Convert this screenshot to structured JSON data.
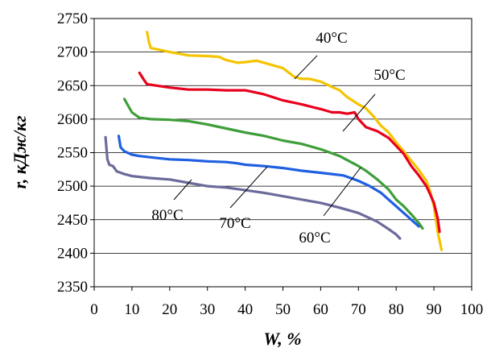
{
  "chart_data": {
    "type": "line",
    "xlabel": "W, %",
    "ylabel": "r, кДж/кг",
    "xlim": [
      0,
      100
    ],
    "ylim": [
      2350,
      2750
    ],
    "x_ticks": [
      "0",
      "10",
      "20",
      "30",
      "40",
      "50",
      "60",
      "70",
      "80",
      "90",
      "100"
    ],
    "y_ticks": [
      "2350",
      "2400",
      "2450",
      "2500",
      "2550",
      "2600",
      "2650",
      "2700",
      "2750"
    ],
    "grid": "horizontal",
    "legend": "none",
    "series": [
      {
        "name": "40°C",
        "color": "#f5c400",
        "points": [
          [
            14,
            2730
          ],
          [
            14.5,
            2715
          ],
          [
            15,
            2706
          ],
          [
            20,
            2700
          ],
          [
            25,
            2695
          ],
          [
            30,
            2694
          ],
          [
            33,
            2693
          ],
          [
            35,
            2688
          ],
          [
            38,
            2684
          ],
          [
            40,
            2685
          ],
          [
            43,
            2687
          ],
          [
            45,
            2684
          ],
          [
            50,
            2676
          ],
          [
            53,
            2663
          ],
          [
            55,
            2660
          ],
          [
            57,
            2660
          ],
          [
            60,
            2656
          ],
          [
            63,
            2648
          ],
          [
            65,
            2643
          ],
          [
            67,
            2633
          ],
          [
            70,
            2622
          ],
          [
            72,
            2616
          ],
          [
            74,
            2604
          ],
          [
            76,
            2590
          ],
          [
            78,
            2580
          ],
          [
            80,
            2565
          ],
          [
            82,
            2552
          ],
          [
            84,
            2538
          ],
          [
            86,
            2524
          ],
          [
            88,
            2508
          ],
          [
            89,
            2492
          ],
          [
            90,
            2470
          ],
          [
            91,
            2432
          ],
          [
            92,
            2405
          ]
        ]
      },
      {
        "name": "50°C",
        "color": "#e8001c",
        "points": [
          [
            12,
            2669
          ],
          [
            13,
            2660
          ],
          [
            14,
            2652
          ],
          [
            20,
            2647
          ],
          [
            25,
            2644
          ],
          [
            30,
            2644
          ],
          [
            35,
            2643
          ],
          [
            38,
            2643
          ],
          [
            40,
            2643
          ],
          [
            45,
            2637
          ],
          [
            50,
            2628
          ],
          [
            55,
            2622
          ],
          [
            60,
            2615
          ],
          [
            63,
            2610
          ],
          [
            65,
            2610
          ],
          [
            67,
            2608
          ],
          [
            69,
            2610
          ],
          [
            70,
            2600
          ],
          [
            72,
            2588
          ],
          [
            75,
            2582
          ],
          [
            78,
            2572
          ],
          [
            80,
            2560
          ],
          [
            82,
            2548
          ],
          [
            84,
            2530
          ],
          [
            86,
            2516
          ],
          [
            88,
            2500
          ],
          [
            89,
            2488
          ],
          [
            90,
            2475
          ],
          [
            91,
            2452
          ],
          [
            91.5,
            2432
          ]
        ]
      },
      {
        "name": "60°C",
        "color": "#3f9e3a",
        "points": [
          [
            8,
            2630
          ],
          [
            9,
            2620
          ],
          [
            10,
            2610
          ],
          [
            12,
            2602
          ],
          [
            15,
            2600
          ],
          [
            20,
            2599
          ],
          [
            25,
            2597
          ],
          [
            30,
            2592
          ],
          [
            35,
            2586
          ],
          [
            40,
            2580
          ],
          [
            45,
            2575
          ],
          [
            50,
            2568
          ],
          [
            55,
            2563
          ],
          [
            60,
            2555
          ],
          [
            65,
            2545
          ],
          [
            70,
            2530
          ],
          [
            72,
            2523
          ],
          [
            75,
            2510
          ],
          [
            78,
            2495
          ],
          [
            80,
            2480
          ],
          [
            82,
            2470
          ],
          [
            84,
            2458
          ],
          [
            86,
            2445
          ],
          [
            87,
            2437
          ]
        ]
      },
      {
        "name": "70°C",
        "color": "#1f5fe0",
        "points": [
          [
            6.5,
            2575
          ],
          [
            7,
            2558
          ],
          [
            8,
            2552
          ],
          [
            10,
            2547
          ],
          [
            12,
            2545
          ],
          [
            15,
            2543
          ],
          [
            20,
            2540
          ],
          [
            25,
            2539
          ],
          [
            30,
            2537
          ],
          [
            35,
            2536
          ],
          [
            38,
            2534
          ],
          [
            40,
            2532
          ],
          [
            45,
            2530
          ],
          [
            50,
            2527
          ],
          [
            55,
            2523
          ],
          [
            60,
            2520
          ],
          [
            63,
            2518
          ],
          [
            66,
            2516
          ],
          [
            70,
            2508
          ],
          [
            73,
            2500
          ],
          [
            76,
            2490
          ],
          [
            78,
            2480
          ],
          [
            80,
            2470
          ],
          [
            82,
            2460
          ],
          [
            84,
            2450
          ],
          [
            86,
            2440
          ]
        ]
      },
      {
        "name": "80°C",
        "color": "#6b6a9a",
        "points": [
          [
            3,
            2573
          ],
          [
            3.5,
            2540
          ],
          [
            4,
            2532
          ],
          [
            5,
            2530
          ],
          [
            6,
            2522
          ],
          [
            8,
            2518
          ],
          [
            10,
            2515
          ],
          [
            15,
            2512
          ],
          [
            20,
            2510
          ],
          [
            25,
            2505
          ],
          [
            30,
            2500
          ],
          [
            35,
            2498
          ],
          [
            40,
            2494
          ],
          [
            45,
            2490
          ],
          [
            50,
            2485
          ],
          [
            55,
            2480
          ],
          [
            60,
            2475
          ],
          [
            65,
            2468
          ],
          [
            70,
            2460
          ],
          [
            75,
            2447
          ],
          [
            78,
            2436
          ],
          [
            80,
            2428
          ],
          [
            81,
            2422
          ]
        ]
      }
    ],
    "annotations": [
      {
        "text": "40°C",
        "series": "40°C"
      },
      {
        "text": "50°C",
        "series": "50°C"
      },
      {
        "text": "60°C",
        "series": "60°C"
      },
      {
        "text": "70°C",
        "series": "70°C"
      },
      {
        "text": "80°C",
        "series": "80°C"
      }
    ]
  }
}
